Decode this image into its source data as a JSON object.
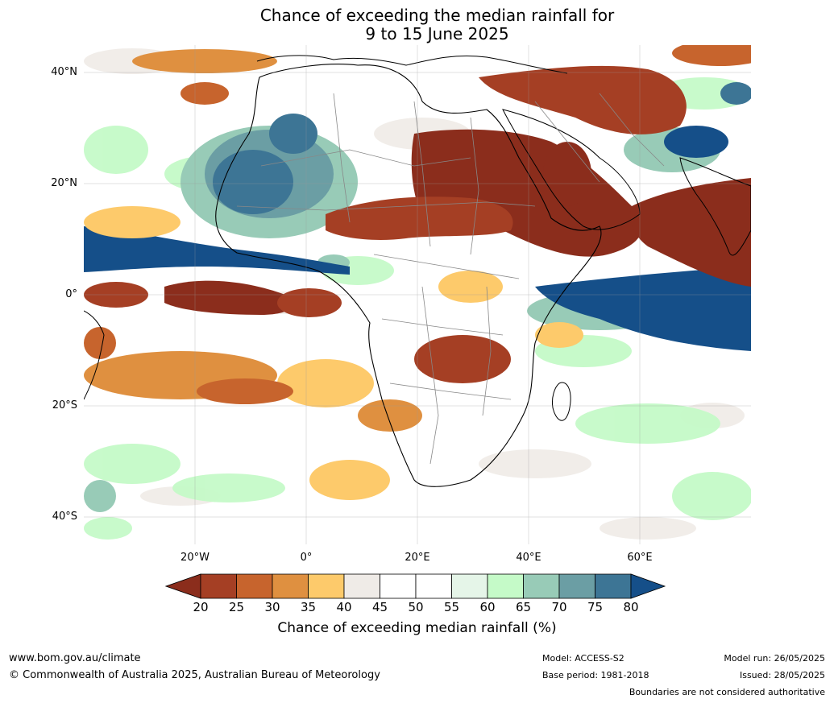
{
  "title": {
    "line1": "Chance of exceeding the median rainfall for",
    "line2": "9 to 15 June 2025"
  },
  "map": {
    "latitude_labels": [
      "40°N",
      "20°N",
      "0°",
      "20°S",
      "40°S"
    ],
    "longitude_labels": [
      "20°W",
      "0°",
      "20°E",
      "40°E",
      "60°E"
    ],
    "extent": {
      "lon_min": -40,
      "lon_max": 80,
      "lat_min": -45,
      "lat_max": 45
    },
    "grid": true
  },
  "colorbar": {
    "ticks": [
      "20",
      "25",
      "30",
      "35",
      "40",
      "45",
      "50",
      "55",
      "60",
      "65",
      "70",
      "75",
      "80"
    ],
    "colors": [
      "#8b2d1c",
      "#a53f24",
      "#c7642d",
      "#df9040",
      "#fdca6b",
      "#efebe7",
      "#ffffff",
      "#ffffff",
      "#e5f5e8",
      "#c5fac8",
      "#98cbb7",
      "#6b9ea4",
      "#3d7595",
      "#154f89"
    ],
    "title": "Chance of exceeding median rainfall (%)"
  },
  "footer": {
    "website": "www.bom.gov.au/climate",
    "copyright": "© Commonwealth of Australia 2025, Australian Bureau of Meteorology",
    "model": "Model: ACCESS-S2",
    "base_period": "Base period: 1981-2018",
    "model_run": "Model run: 26/05/2025",
    "issued": "Issued: 28/05/2025",
    "disclaimer": "Boundaries are not considered authoritative"
  }
}
